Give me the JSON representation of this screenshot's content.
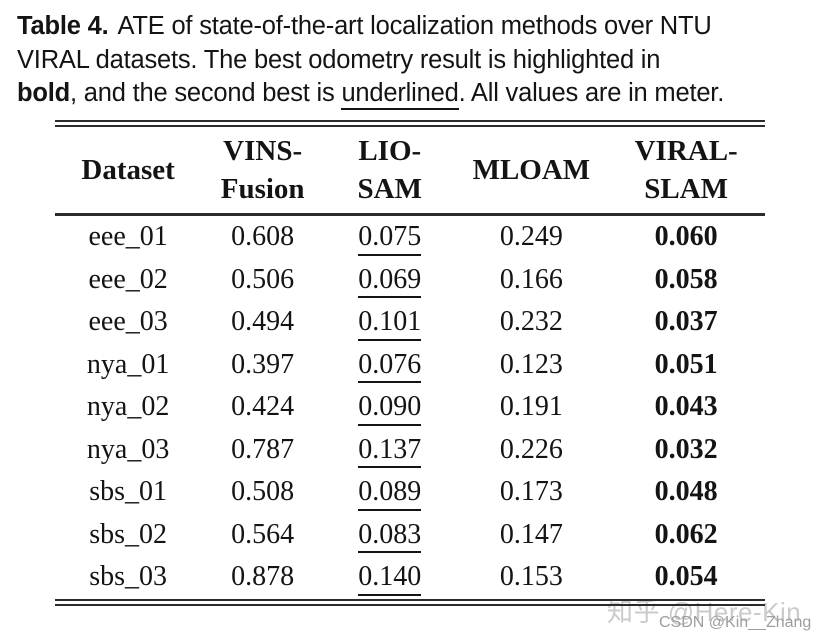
{
  "caption": {
    "label": "Table 4.",
    "line1": "ATE of state-of-the-art localization methods over NTU",
    "line2": "VIRAL datasets. The best odometry result is highlighted in",
    "line3": {
      "bold": "bold",
      "mid": ", and the second best is ",
      "underlined": "underlined",
      "end": ". All values are in meter."
    }
  },
  "table": {
    "headers": [
      {
        "line1": "Dataset",
        "line2": ""
      },
      {
        "line1": "VINS-",
        "line2": "Fusion"
      },
      {
        "line1": "LIO-",
        "line2": "SAM"
      },
      {
        "line1": "MLOAM",
        "line2": ""
      },
      {
        "line1": "VIRAL-",
        "line2": "SLAM"
      }
    ],
    "column_keys": [
      "dataset",
      "vins_fusion",
      "lio_sam",
      "mloam",
      "viral_slam"
    ],
    "emphasis": {
      "underlined_column": "lio_sam",
      "bold_column": "viral_slam"
    },
    "rows": [
      {
        "dataset": "eee_01",
        "vins_fusion": "0.608",
        "lio_sam": "0.075",
        "mloam": "0.249",
        "viral_slam": "0.060"
      },
      {
        "dataset": "eee_02",
        "vins_fusion": "0.506",
        "lio_sam": "0.069",
        "mloam": "0.166",
        "viral_slam": "0.058"
      },
      {
        "dataset": "eee_03",
        "vins_fusion": "0.494",
        "lio_sam": "0.101",
        "mloam": "0.232",
        "viral_slam": "0.037"
      },
      {
        "dataset": "nya_01",
        "vins_fusion": "0.397",
        "lio_sam": "0.076",
        "mloam": "0.123",
        "viral_slam": "0.051"
      },
      {
        "dataset": "nya_02",
        "vins_fusion": "0.424",
        "lio_sam": "0.090",
        "mloam": "0.191",
        "viral_slam": "0.043"
      },
      {
        "dataset": "nya_03",
        "vins_fusion": "0.787",
        "lio_sam": "0.137",
        "mloam": "0.226",
        "viral_slam": "0.032"
      },
      {
        "dataset": "sbs_01",
        "vins_fusion": "0.508",
        "lio_sam": "0.089",
        "mloam": "0.173",
        "viral_slam": "0.048"
      },
      {
        "dataset": "sbs_02",
        "vins_fusion": "0.564",
        "lio_sam": "0.083",
        "mloam": "0.147",
        "viral_slam": "0.062"
      },
      {
        "dataset": "sbs_03",
        "vins_fusion": "0.878",
        "lio_sam": "0.140",
        "mloam": "0.153",
        "viral_slam": "0.054"
      }
    ]
  },
  "watermarks": {
    "zhihu": "知乎 @Here-Kin",
    "csdn": "CSDN @Kin__Zhang"
  },
  "colors": {
    "text": "#141414",
    "rule": "#2b2b2b",
    "watermark_zhihu": "#cbcbcb",
    "watermark_csdn": "#9e9e9e"
  }
}
